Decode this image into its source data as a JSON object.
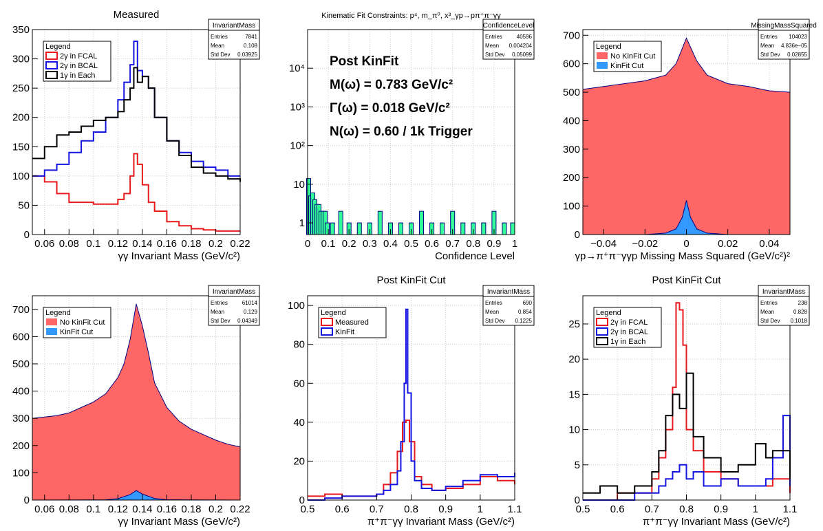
{
  "colors": {
    "red": "#e8191c",
    "blue": "#1414e0",
    "black": "#000000",
    "fill_red": "#ff6666",
    "fill_blue": "#3399ff",
    "fill_green": "#33ff99",
    "navy": "#00007f",
    "grid": "#c8c8c8"
  },
  "chart_data": [
    {
      "type": "line",
      "title": "Measured",
      "xlabel": "γγ Invariant Mass (GeV/c²)",
      "ylabel": "",
      "xlim": [
        0.05,
        0.22
      ],
      "ylim": [
        0,
        350
      ],
      "x_ticks": [
        0.06,
        0.08,
        0.1,
        0.12,
        0.14,
        0.16,
        0.18,
        0.2,
        0.22
      ],
      "x_tick_labels": [
        "0.06",
        "0.08",
        "0.1",
        "0.12",
        "0.14",
        "0.16",
        "0.18",
        "0.2",
        "0.22"
      ],
      "y_ticks": [
        0,
        50,
        100,
        150,
        200,
        250,
        300,
        350
      ],
      "y_tick_labels": [
        "0",
        "50",
        "100",
        "150",
        "200",
        "250",
        "300",
        "350"
      ],
      "grid": true,
      "stats": {
        "title": "InvariantMass",
        "rows": [
          [
            "Entries",
            "7841"
          ],
          [
            "Mean",
            "0.108"
          ],
          [
            "Std Dev",
            "0.03925"
          ]
        ]
      },
      "legend": {
        "title": "Legend",
        "position": "top-left",
        "entries": [
          {
            "label": "2γ in FCAL",
            "style": "line",
            "color": "#e8191c"
          },
          {
            "label": "2γ in BCAL",
            "style": "line",
            "color": "#1414e0"
          },
          {
            "label": "1γ in Each",
            "style": "line",
            "color": "#000000"
          }
        ]
      },
      "series": [
        {
          "name": "2γ in FCAL",
          "color": "#e8191c",
          "x": [
            0.05,
            0.06,
            0.07,
            0.08,
            0.09,
            0.1,
            0.11,
            0.12,
            0.125,
            0.13,
            0.133,
            0.136,
            0.14,
            0.145,
            0.15,
            0.16,
            0.17,
            0.18,
            0.19,
            0.2,
            0.21,
            0.22
          ],
          "y": [
            100,
            90,
            70,
            55,
            55,
            52,
            52,
            60,
            70,
            100,
            138,
            120,
            85,
            55,
            40,
            22,
            15,
            10,
            8,
            6,
            6,
            6
          ]
        },
        {
          "name": "2γ in BCAL",
          "color": "#1414e0",
          "x": [
            0.05,
            0.06,
            0.07,
            0.08,
            0.09,
            0.1,
            0.11,
            0.12,
            0.125,
            0.13,
            0.133,
            0.136,
            0.14,
            0.145,
            0.15,
            0.16,
            0.17,
            0.18,
            0.19,
            0.2,
            0.21,
            0.22
          ],
          "y": [
            100,
            110,
            120,
            140,
            160,
            175,
            200,
            230,
            260,
            290,
            330,
            280,
            270,
            250,
            200,
            160,
            140,
            125,
            115,
            110,
            100,
            100
          ]
        },
        {
          "name": "1γ in Each",
          "color": "#000000",
          "x": [
            0.05,
            0.06,
            0.07,
            0.08,
            0.09,
            0.1,
            0.11,
            0.12,
            0.125,
            0.13,
            0.133,
            0.136,
            0.14,
            0.145,
            0.15,
            0.16,
            0.17,
            0.18,
            0.19,
            0.2,
            0.21,
            0.22
          ],
          "y": [
            130,
            150,
            170,
            175,
            185,
            195,
            200,
            210,
            230,
            250,
            285,
            260,
            270,
            250,
            200,
            160,
            135,
            115,
            105,
            100,
            95,
            90
          ]
        }
      ]
    },
    {
      "type": "bar",
      "title": "Kinematic Fit Constraints: p⁴, m_π⁰, x³_γp→pπ⁺π⁻γγ",
      "xlabel": "Confidence Level",
      "ylabel": "",
      "xlim": [
        0,
        1
      ],
      "log_y": true,
      "ylim": [
        0.5,
        100000
      ],
      "x_ticks": [
        0,
        0.1,
        0.2,
        0.3,
        0.4,
        0.5,
        0.6,
        0.7,
        0.8,
        0.9,
        1
      ],
      "x_tick_labels": [
        "0",
        "0.1",
        "0.2",
        "0.3",
        "0.4",
        "0.5",
        "0.6",
        "0.7",
        "0.8",
        "0.9",
        "1"
      ],
      "y_ticks": [
        1,
        10,
        100,
        1000,
        10000
      ],
      "y_tick_labels": [
        "1",
        "10",
        "10²",
        "10³",
        "10⁴"
      ],
      "grid": true,
      "stats": {
        "title": "ConfidenceLevel",
        "rows": [
          [
            "Entries",
            "40596"
          ],
          [
            "Mean",
            "0.004204"
          ],
          [
            "Std Dev",
            "0.05099"
          ]
        ]
      },
      "annotations": [
        "Post KinFit",
        "M(ω) = 0.783 GeV/c²",
        "Γ(ω) = 0.018 GeV/c²",
        "N(ω) = 0.60 / 1k Trigger"
      ],
      "series": [
        {
          "name": "",
          "color": "#00007f",
          "x": [
            0.005,
            0.015,
            0.025,
            0.035,
            0.045,
            0.055,
            0.065,
            0.075,
            0.085,
            0.095,
            0.12,
            0.16,
            0.2,
            0.25,
            0.3,
            0.35,
            0.4,
            0.45,
            0.5,
            0.55,
            0.6,
            0.65,
            0.7,
            0.75,
            0.8,
            0.85,
            0.9,
            0.95,
            0.99
          ],
          "values": [
            14,
            5,
            6,
            4,
            3,
            3,
            2,
            2,
            2,
            1,
            1,
            2,
            1,
            1,
            1,
            2,
            1,
            1,
            1,
            2,
            1,
            1,
            2,
            1,
            1,
            1,
            2,
            1,
            1
          ]
        }
      ]
    },
    {
      "type": "bar",
      "title": "",
      "xlabel": "γp→π⁺π⁻γγp Missing Mass Squared (GeV/c²)²",
      "ylabel": "",
      "xlim": [
        -0.05,
        0.05
      ],
      "ylim": [
        0,
        720
      ],
      "x_ticks": [
        -0.04,
        -0.02,
        0,
        0.02,
        0.04
      ],
      "x_tick_labels": [
        "−0.04",
        "−0.02",
        "0",
        "0.02",
        "0.04"
      ],
      "y_ticks": [
        0,
        100,
        200,
        300,
        400,
        500,
        600,
        700
      ],
      "y_tick_labels": [
        "0",
        "100",
        "200",
        "300",
        "400",
        "500",
        "600",
        "700"
      ],
      "grid": true,
      "stats": {
        "title": "MissingMassSquared",
        "rows": [
          [
            "Entries",
            "104023"
          ],
          [
            "Mean",
            "4.836e−05"
          ],
          [
            "Std Dev",
            "0.02855"
          ]
        ]
      },
      "legend": {
        "title": "Legend",
        "position": "top-left",
        "entries": [
          {
            "label": "No KinFit Cut",
            "style": "fill",
            "color": "#ff6666"
          },
          {
            "label": "KinFit Cut",
            "style": "fill",
            "color": "#3399ff"
          }
        ]
      },
      "series": [
        {
          "name": "No KinFit Cut",
          "color": "#ff6666",
          "x": [
            -0.05,
            -0.04,
            -0.03,
            -0.02,
            -0.01,
            -0.005,
            0,
            0.005,
            0.01,
            0.02,
            0.03,
            0.04,
            0.05
          ],
          "y": [
            510,
            520,
            530,
            540,
            560,
            600,
            690,
            610,
            560,
            530,
            520,
            505,
            500
          ]
        },
        {
          "name": "KinFit Cut",
          "color": "#3399ff",
          "x": [
            -0.05,
            -0.02,
            -0.01,
            -0.005,
            -0.002,
            0,
            0.002,
            0.005,
            0.01,
            0.02,
            0.05
          ],
          "y": [
            0,
            0,
            5,
            20,
            60,
            120,
            60,
            20,
            5,
            0,
            0
          ]
        }
      ]
    },
    {
      "type": "area",
      "title": "",
      "xlabel": "γγ Invariant Mass (GeV/c²)",
      "ylabel": "",
      "xlim": [
        0.05,
        0.22
      ],
      "ylim": [
        0,
        750
      ],
      "x_ticks": [
        0.06,
        0.08,
        0.1,
        0.12,
        0.14,
        0.16,
        0.18,
        0.2,
        0.22
      ],
      "x_tick_labels": [
        "0.06",
        "0.08",
        "0.1",
        "0.12",
        "0.14",
        "0.16",
        "0.18",
        "0.2",
        "0.22"
      ],
      "y_ticks": [
        0,
        100,
        200,
        300,
        400,
        500,
        600,
        700
      ],
      "y_tick_labels": [
        "0",
        "100",
        "200",
        "300",
        "400",
        "500",
        "600",
        "700"
      ],
      "grid": true,
      "stats": {
        "title": "InvariantMass",
        "rows": [
          [
            "Entries",
            "61014"
          ],
          [
            "Mean",
            "0.129"
          ],
          [
            "Std Dev",
            "0.04349"
          ]
        ]
      },
      "legend": {
        "title": "Legend",
        "position": "top-left",
        "entries": [
          {
            "label": "No KinFit Cut",
            "style": "fill",
            "color": "#ff6666"
          },
          {
            "label": "KinFit Cut",
            "style": "fill",
            "color": "#3399ff"
          }
        ]
      },
      "series": [
        {
          "name": "No KinFit Cut",
          "color": "#ff6666",
          "x": [
            0.05,
            0.06,
            0.07,
            0.08,
            0.09,
            0.1,
            0.11,
            0.12,
            0.125,
            0.13,
            0.135,
            0.14,
            0.145,
            0.15,
            0.16,
            0.17,
            0.18,
            0.19,
            0.2,
            0.21,
            0.22
          ],
          "y": [
            300,
            305,
            310,
            320,
            340,
            360,
            390,
            450,
            500,
            590,
            720,
            640,
            540,
            430,
            340,
            290,
            260,
            240,
            220,
            205,
            195
          ]
        },
        {
          "name": "KinFit Cut",
          "color": "#3399ff",
          "x": [
            0.05,
            0.11,
            0.12,
            0.13,
            0.135,
            0.14,
            0.15,
            0.16,
            0.22
          ],
          "y": [
            0,
            1,
            5,
            20,
            35,
            22,
            6,
            1,
            0
          ]
        }
      ]
    },
    {
      "type": "line",
      "title": "Post KinFit Cut",
      "xlabel": "π⁺π⁻γγ Invariant Mass (GeV/c²)",
      "ylabel": "",
      "xlim": [
        0.5,
        1.1
      ],
      "ylim": [
        0,
        105
      ],
      "x_ticks": [
        0.5,
        0.6,
        0.7,
        0.8,
        0.9,
        1,
        1.1
      ],
      "x_tick_labels": [
        "0.5",
        "0.6",
        "0.7",
        "0.8",
        "0.9",
        "1",
        "1.1"
      ],
      "y_ticks": [
        0,
        20,
        40,
        60,
        80,
        100
      ],
      "y_tick_labels": [
        "0",
        "20",
        "40",
        "60",
        "80",
        "100"
      ],
      "grid": true,
      "stats": {
        "title": "InvariantMass",
        "rows": [
          [
            "Entries",
            "690"
          ],
          [
            "Mean",
            "0.854"
          ],
          [
            "Std Dev",
            "0.1225"
          ]
        ]
      },
      "legend": {
        "title": "Legend",
        "position": "top-left",
        "entries": [
          {
            "label": "Measured",
            "style": "line",
            "color": "#e8191c"
          },
          {
            "label": "KinFit",
            "style": "line",
            "color": "#1414e0"
          }
        ]
      },
      "series": [
        {
          "name": "Measured",
          "color": "#e8191c",
          "x": [
            0.5,
            0.55,
            0.6,
            0.65,
            0.7,
            0.72,
            0.74,
            0.76,
            0.775,
            0.785,
            0.795,
            0.81,
            0.83,
            0.86,
            0.9,
            0.95,
            1.0,
            1.05,
            1.1
          ],
          "y": [
            2,
            3,
            2,
            2,
            3,
            8,
            14,
            25,
            40,
            41,
            30,
            12,
            8,
            5,
            6,
            8,
            12,
            10,
            8
          ]
        },
        {
          "name": "KinFit",
          "color": "#1414e0",
          "x": [
            0.5,
            0.55,
            0.6,
            0.65,
            0.7,
            0.72,
            0.74,
            0.76,
            0.77,
            0.78,
            0.785,
            0.79,
            0.8,
            0.81,
            0.83,
            0.86,
            0.9,
            0.95,
            1.0,
            1.05,
            1.1
          ],
          "y": [
            0,
            1,
            2,
            2,
            3,
            5,
            8,
            15,
            30,
            60,
            98,
            55,
            20,
            10,
            6,
            5,
            7,
            10,
            13,
            12,
            14
          ]
        }
      ]
    },
    {
      "type": "line",
      "title": "Post KinFit Cut",
      "xlabel": "π⁺π⁻γγ Invariant Mass (GeV/c²)",
      "ylabel": "",
      "xlim": [
        0.5,
        1.1
      ],
      "ylim": [
        0,
        29
      ],
      "x_ticks": [
        0.5,
        0.6,
        0.7,
        0.8,
        0.9,
        1,
        1.1
      ],
      "x_tick_labels": [
        "0.5",
        "0.6",
        "0.7",
        "0.8",
        "0.9",
        "1",
        "1.1"
      ],
      "y_ticks": [
        0,
        5,
        10,
        15,
        20,
        25
      ],
      "y_tick_labels": [
        "0",
        "5",
        "10",
        "15",
        "20",
        "25"
      ],
      "grid": true,
      "stats": {
        "title": "InvariantMass",
        "rows": [
          [
            "Entries",
            "238"
          ],
          [
            "Mean",
            "0.828"
          ],
          [
            "Std Dev",
            "0.1018"
          ]
        ]
      },
      "legend": {
        "title": "Legend",
        "position": "top-left",
        "entries": [
          {
            "label": "2γ in FCAL",
            "style": "line",
            "color": "#e8191c"
          },
          {
            "label": "2γ in BCAL",
            "style": "line",
            "color": "#1414e0"
          },
          {
            "label": "1γ in Each",
            "style": "line",
            "color": "#000000"
          }
        ]
      },
      "series": [
        {
          "name": "2γ in FCAL",
          "color": "#e8191c",
          "x": [
            0.5,
            0.6,
            0.65,
            0.7,
            0.72,
            0.74,
            0.76,
            0.77,
            0.78,
            0.79,
            0.8,
            0.82,
            0.85,
            0.9,
            0.95,
            1.0,
            1.05,
            1.1
          ],
          "y": [
            0,
            1,
            1,
            3,
            6,
            10,
            16,
            28,
            27,
            22,
            10,
            7,
            4,
            3,
            2,
            2,
            3,
            1
          ]
        },
        {
          "name": "2γ in BCAL",
          "color": "#1414e0",
          "x": [
            0.5,
            0.6,
            0.65,
            0.7,
            0.72,
            0.74,
            0.76,
            0.78,
            0.8,
            0.82,
            0.85,
            0.9,
            0.95,
            1.0,
            1.03,
            1.05,
            1.08,
            1.1
          ],
          "y": [
            0,
            0,
            1,
            1,
            2,
            3,
            4,
            5,
            3,
            4,
            2,
            3,
            2,
            2,
            3,
            6,
            12,
            2
          ]
        },
        {
          "name": "1γ in Each",
          "color": "#000000",
          "x": [
            0.5,
            0.55,
            0.6,
            0.65,
            0.7,
            0.72,
            0.74,
            0.76,
            0.78,
            0.8,
            0.82,
            0.85,
            0.9,
            0.95,
            1.0,
            1.03,
            1.05,
            1.1
          ],
          "y": [
            1,
            2,
            1,
            2,
            4,
            7,
            12,
            15,
            13,
            18,
            9,
            6,
            4,
            5,
            8,
            6,
            7,
            3
          ]
        }
      ]
    }
  ]
}
